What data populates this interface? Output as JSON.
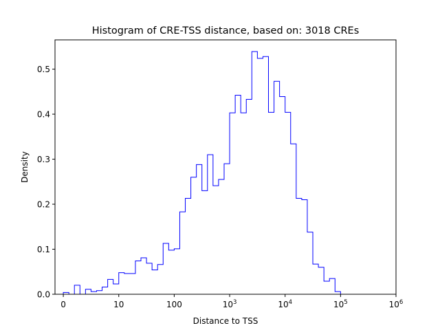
{
  "chart_data": {
    "type": "histogram",
    "title": "Histogram of CRE-TSS distance, based on: 3018 CREs",
    "xlabel": "Distance to TSS",
    "ylabel": "Density",
    "x_scale": "symlog (linear below 10, log above)",
    "xlim": [
      -0.15,
      6
    ],
    "ylim": [
      0,
      0.565
    ],
    "series_color": "#0000ff",
    "grid": false,
    "x_ticks": [
      {
        "pos": 0,
        "base": "0",
        "exp": ""
      },
      {
        "pos": 1,
        "base": "10",
        "exp": ""
      },
      {
        "pos": 2,
        "base": "100",
        "exp": ""
      },
      {
        "pos": 3,
        "base": "10",
        "exp": "3"
      },
      {
        "pos": 4,
        "base": "10",
        "exp": "4"
      },
      {
        "pos": 5,
        "base": "10",
        "exp": "5"
      },
      {
        "pos": 6,
        "base": "10",
        "exp": "6"
      }
    ],
    "y_ticks": [
      {
        "value": 0.0,
        "label": "0.0"
      },
      {
        "value": 0.1,
        "label": "0.1"
      },
      {
        "value": 0.2,
        "label": "0.2"
      },
      {
        "value": 0.3,
        "label": "0.3"
      },
      {
        "value": 0.4,
        "label": "0.4"
      },
      {
        "value": 0.5,
        "label": "0.5"
      }
    ],
    "bin_start": 0,
    "bin_width": 0.1,
    "densities": [
      0.004,
      0.0,
      0.02,
      0.0,
      0.011,
      0.006,
      0.008,
      0.016,
      0.033,
      0.023,
      0.048,
      0.046,
      0.046,
      0.074,
      0.081,
      0.069,
      0.054,
      0.066,
      0.113,
      0.098,
      0.101,
      0.183,
      0.213,
      0.26,
      0.288,
      0.23,
      0.31,
      0.241,
      0.255,
      0.29,
      0.403,
      0.442,
      0.403,
      0.433,
      0.539,
      0.524,
      0.528,
      0.404,
      0.473,
      0.439,
      0.404,
      0.334,
      0.213,
      0.21,
      0.138,
      0.067,
      0.06,
      0.029,
      0.035,
      0.006
    ]
  }
}
